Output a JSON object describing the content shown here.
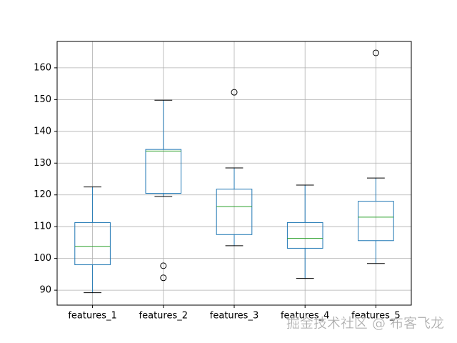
{
  "chart_data": {
    "type": "box",
    "categories": [
      "features_1",
      "features_2",
      "features_3",
      "features_4",
      "features_5"
    ],
    "boxes": [
      {
        "whislo": 89.2,
        "q1": 98.0,
        "med": 103.8,
        "q3": 111.3,
        "whishi": 122.5,
        "fliers": []
      },
      {
        "whislo": 119.5,
        "q1": 120.5,
        "med": 133.8,
        "q3": 134.3,
        "whishi": 149.8,
        "fliers": [
          97.7,
          93.9
        ]
      },
      {
        "whislo": 104.0,
        "q1": 107.5,
        "med": 116.3,
        "q3": 121.8,
        "whishi": 128.5,
        "fliers": [
          152.3
        ]
      },
      {
        "whislo": 93.7,
        "q1": 103.2,
        "med": 106.3,
        "q3": 111.3,
        "whishi": 123.1,
        "fliers": []
      },
      {
        "whislo": 98.4,
        "q1": 105.6,
        "med": 113.0,
        "q3": 118.0,
        "whishi": 125.3,
        "fliers": [
          164.7
        ]
      }
    ],
    "box_color": "#1f77b4",
    "median_color": "#2ca02c",
    "whisker_color": "#000000",
    "ylim": [
      85.3,
      168.3
    ],
    "yticks": [
      90,
      100,
      110,
      120,
      130,
      140,
      150,
      160
    ],
    "grid": true
  },
  "watermark": "掘金技术社区 @ 布客飞龙"
}
